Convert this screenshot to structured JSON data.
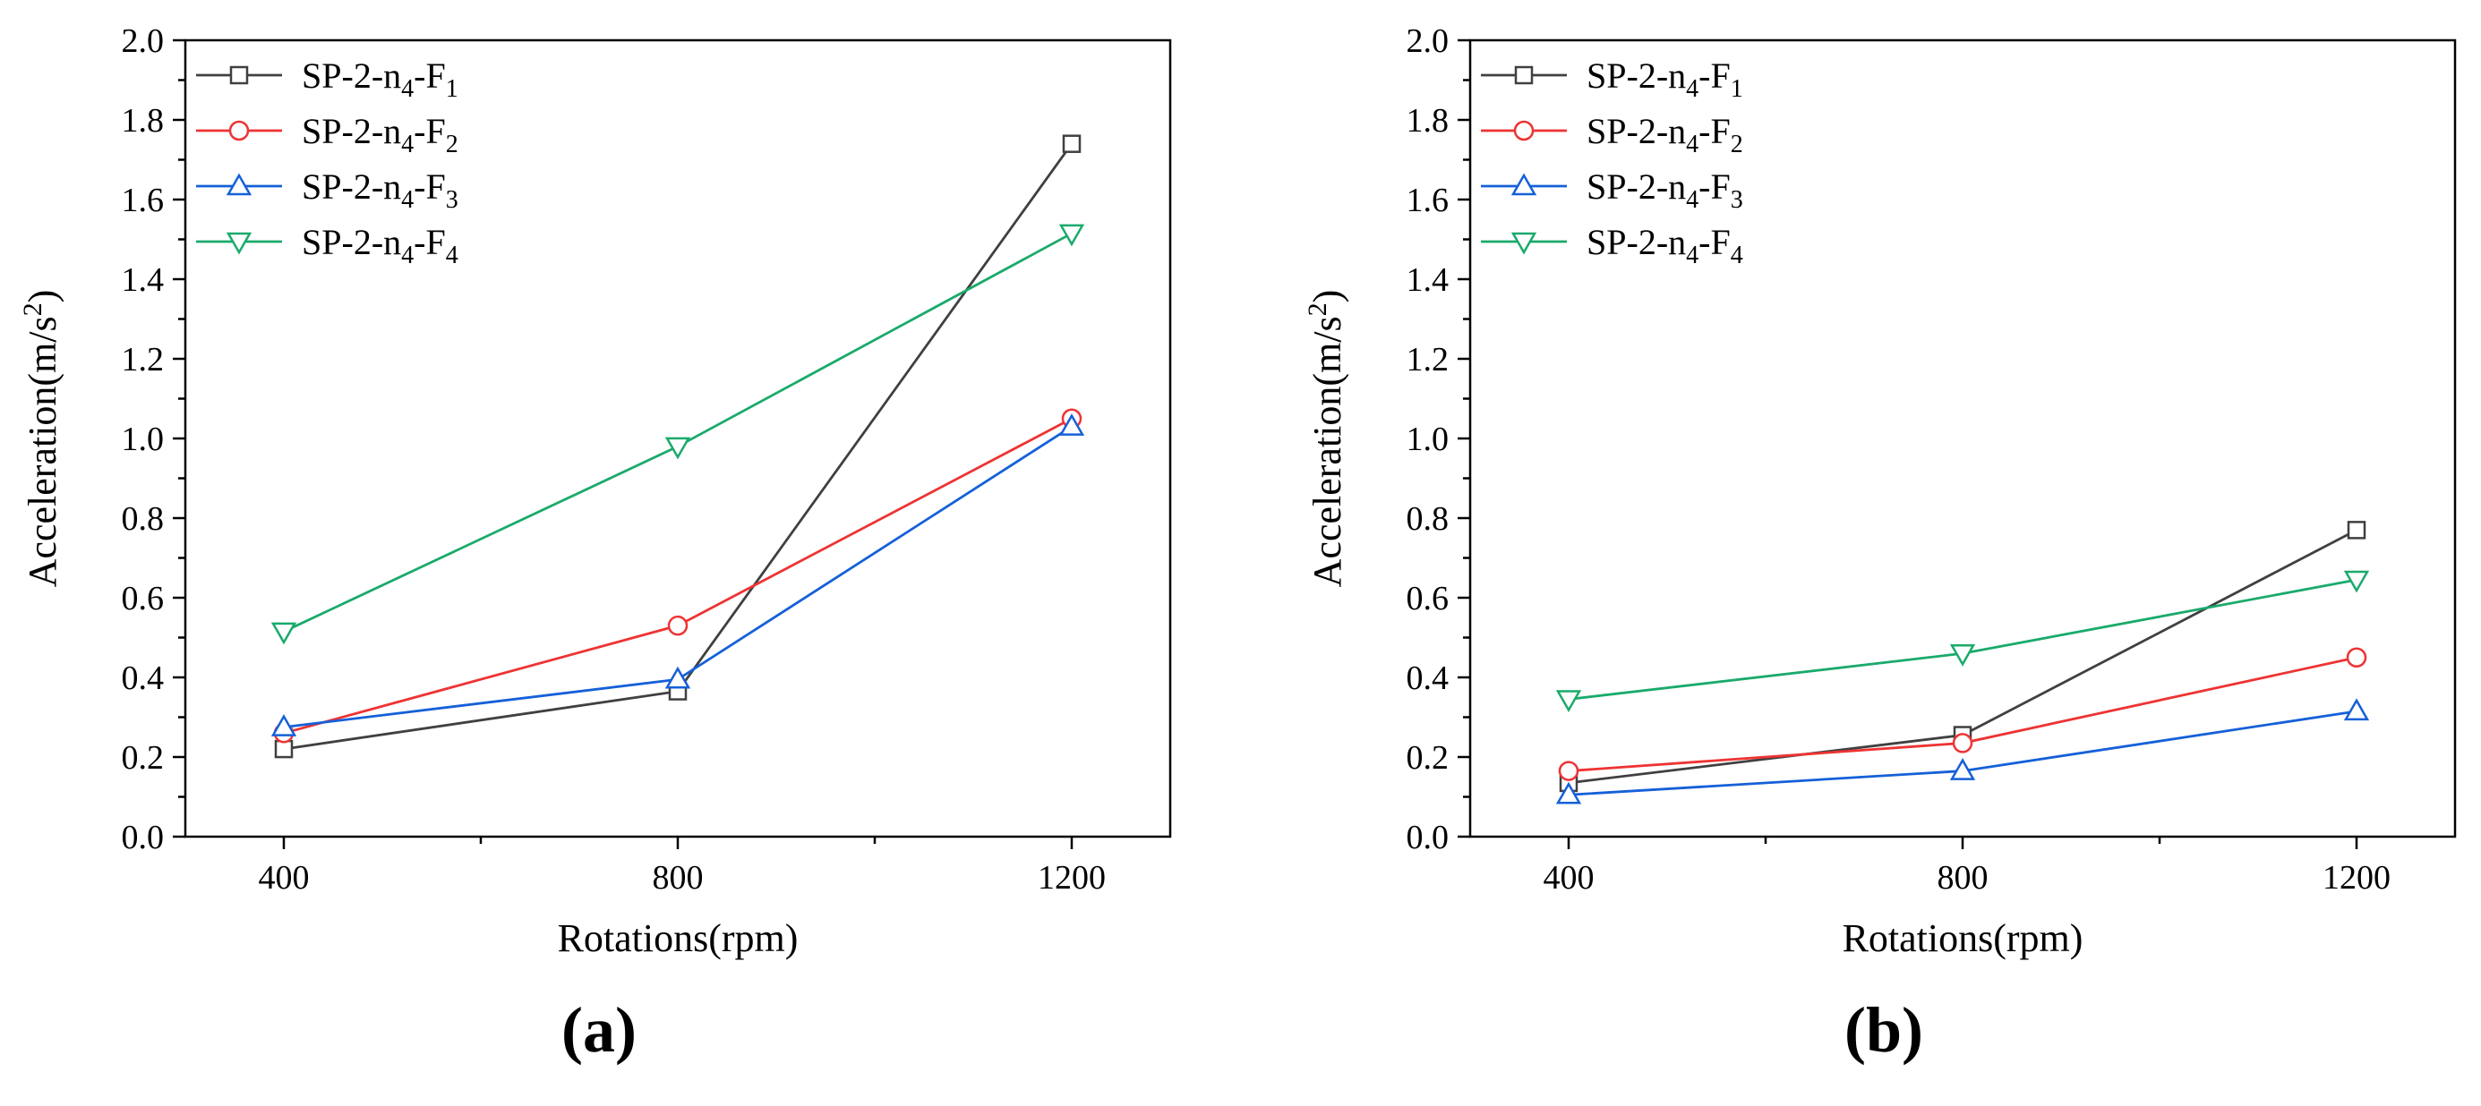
{
  "chart_data": [
    {
      "type": "line",
      "panel_label": "(a)",
      "title": "",
      "xlabel": "Rotations(rpm)",
      "ylabel": "Acceleration(m/s²)",
      "ylabel_base": "Acceleration(m/s",
      "ylabel_sup": "2",
      "ylabel_tail": ")",
      "x": [
        400,
        800,
        1200
      ],
      "x_tick_labels": [
        "400",
        "800",
        "1200"
      ],
      "xlim": [
        300,
        1300
      ],
      "ylim": [
        0.0,
        2.0
      ],
      "y_tick_labels": [
        "0.0",
        "0.2",
        "0.4",
        "0.6",
        "0.8",
        "1.0",
        "1.2",
        "1.4",
        "1.6",
        "1.8",
        "2.0"
      ],
      "grid": false,
      "legend_position": "top-left",
      "series": [
        {
          "name": "SP-2-n4-F1",
          "label_prefix": "SP-2-n",
          "label_sub": "4",
          "label_mid": "-F",
          "label_sub2": "1",
          "color": "#404040",
          "marker": "square",
          "values": [
            0.22,
            0.365,
            1.74
          ]
        },
        {
          "name": "SP-2-n4-F2",
          "label_prefix": "SP-2-n",
          "label_sub": "4",
          "label_mid": "-F",
          "label_sub2": "2",
          "color": "#ee3333",
          "marker": "circle",
          "values": [
            0.26,
            0.53,
            1.05
          ]
        },
        {
          "name": "SP-2-n4-F3",
          "label_prefix": "SP-2-n",
          "label_sub": "4",
          "label_mid": "-F",
          "label_sub2": "3",
          "color": "#1560d8",
          "marker": "triangle-up",
          "values": [
            0.275,
            0.395,
            1.03
          ]
        },
        {
          "name": "SP-2-n4-F4",
          "label_prefix": "SP-2-n",
          "label_sub": "4",
          "label_mid": "-F",
          "label_sub2": "4",
          "color": "#1aaa6c",
          "marker": "triangle-down",
          "values": [
            0.515,
            0.98,
            1.515
          ]
        }
      ]
    },
    {
      "type": "line",
      "panel_label": "(b)",
      "title": "",
      "xlabel": "Rotations(rpm)",
      "ylabel": "Acceleration(m/s²)",
      "ylabel_base": "Acceleration(m/s",
      "ylabel_sup": "2",
      "ylabel_tail": ")",
      "x": [
        400,
        800,
        1200
      ],
      "x_tick_labels": [
        "400",
        "800",
        "1200"
      ],
      "xlim": [
        300,
        1300
      ],
      "ylim": [
        0.0,
        2.0
      ],
      "y_tick_labels": [
        "0.0",
        "0.2",
        "0.4",
        "0.6",
        "0.8",
        "1.0",
        "1.2",
        "1.4",
        "1.6",
        "1.8",
        "2.0"
      ],
      "grid": false,
      "legend_position": "top-left",
      "series": [
        {
          "name": "SP-2-n4-F1",
          "label_prefix": "SP-2-n",
          "label_sub": "4",
          "label_mid": "-F",
          "label_sub2": "1",
          "color": "#404040",
          "marker": "square",
          "values": [
            0.135,
            0.255,
            0.77
          ]
        },
        {
          "name": "SP-2-n4-F2",
          "label_prefix": "SP-2-n",
          "label_sub": "4",
          "label_mid": "-F",
          "label_sub2": "2",
          "color": "#ee3333",
          "marker": "circle",
          "values": [
            0.165,
            0.235,
            0.45
          ]
        },
        {
          "name": "SP-2-n4-F3",
          "label_prefix": "SP-2-n",
          "label_sub": "4",
          "label_mid": "-F",
          "label_sub2": "3",
          "color": "#1560d8",
          "marker": "triangle-up",
          "values": [
            0.105,
            0.165,
            0.315
          ]
        },
        {
          "name": "SP-2-n4-F4",
          "label_prefix": "SP-2-n",
          "label_sub": "4",
          "label_mid": "-F",
          "label_sub2": "4",
          "color": "#1aaa6c",
          "marker": "triangle-down",
          "values": [
            0.345,
            0.46,
            0.645
          ]
        }
      ]
    }
  ]
}
